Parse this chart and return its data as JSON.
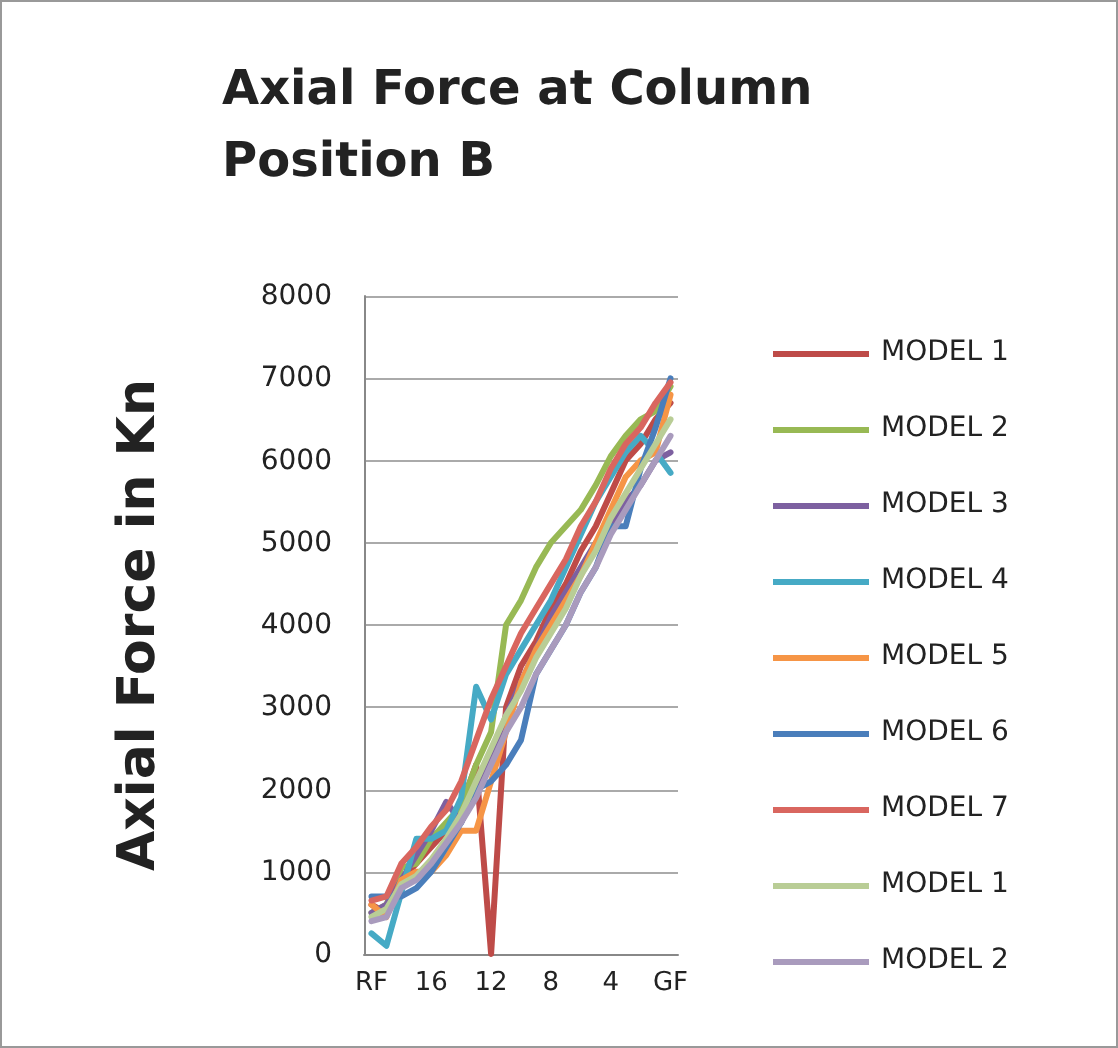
{
  "chart_data": {
    "type": "line",
    "title": "Axial Force at Column Position B",
    "ylabel": "Axial Force in Kn",
    "categories": [
      "RF",
      null,
      null,
      null,
      "16",
      null,
      null,
      null,
      "12",
      null,
      null,
      null,
      "8",
      null,
      null,
      null,
      "4",
      null,
      null,
      null,
      "GF"
    ],
    "series": [
      {
        "name": "MODEL 1",
        "color": "#be4b48",
        "values": [
          600,
          500,
          900,
          1100,
          1300,
          1500,
          1800,
          2300,
          0,
          3000,
          3500,
          3800,
          4200,
          4500,
          4900,
          5200,
          5600,
          6000,
          6200,
          6500,
          6700
        ]
      },
      {
        "name": "MODEL 2",
        "color": "#98b954",
        "values": [
          500,
          600,
          1050,
          1100,
          1400,
          1600,
          1800,
          2300,
          2700,
          4000,
          4300,
          4700,
          5000,
          5200,
          5400,
          5700,
          6050,
          6300,
          6500,
          6600,
          6900
        ]
      },
      {
        "name": "MODEL 3",
        "color": "#7d60a0",
        "values": [
          500,
          600,
          900,
          1200,
          1500,
          1850,
          1600,
          2000,
          2400,
          2900,
          3300,
          3700,
          4100,
          4400,
          4700,
          5000,
          5200,
          5500,
          5700,
          6000,
          6100
        ]
      },
      {
        "name": "MODEL 4",
        "color": "#46aac5",
        "values": [
          250,
          100,
          750,
          1400,
          1400,
          1500,
          1900,
          3250,
          2850,
          3400,
          3700,
          4000,
          4300,
          4700,
          5100,
          5500,
          5800,
          6100,
          6300,
          6100,
          5850
        ]
      },
      {
        "name": "MODEL 5",
        "color": "#f69546",
        "values": [
          600,
          450,
          900,
          1000,
          1000,
          1200,
          1500,
          1500,
          2100,
          2700,
          3300,
          3700,
          4000,
          4300,
          4600,
          5000,
          5400,
          5800,
          6000,
          6100,
          6800
        ]
      },
      {
        "name": "MODEL 6",
        "color": "#4a7ebb",
        "values": [
          700,
          700,
          700,
          800,
          1000,
          1300,
          1600,
          2000,
          2100,
          2300,
          2600,
          3400,
          3700,
          4000,
          4400,
          4700,
          5200,
          5200,
          5900,
          6400,
          7000
        ]
      },
      {
        "name": "MODEL 7",
        "color": "#d9665f",
        "values": [
          650,
          700,
          1100,
          1300,
          1550,
          1750,
          2100,
          2600,
          3100,
          3500,
          3900,
          4200,
          4500,
          4800,
          5200,
          5500,
          5900,
          6200,
          6400,
          6700,
          6950
        ]
      },
      {
        "name": "MODEL 1",
        "color": "#b9cd96",
        "values": [
          450,
          550,
          850,
          950,
          1150,
          1400,
          1700,
          2100,
          2500,
          2900,
          3200,
          3600,
          3900,
          4200,
          4600,
          4900,
          5300,
          5600,
          5900,
          6200,
          6500
        ]
      },
      {
        "name": "MODEL 2",
        "color": "#a99bbd",
        "values": [
          400,
          450,
          800,
          900,
          1100,
          1350,
          1600,
          1900,
          2300,
          2700,
          3000,
          3400,
          3700,
          4000,
          4400,
          4700,
          5100,
          5400,
          5700,
          6000,
          6300
        ]
      }
    ],
    "ylim": [
      0,
      8000
    ],
    "yticks": [
      0,
      1000,
      2000,
      3000,
      4000,
      5000,
      6000,
      7000,
      8000
    ],
    "grid": "y",
    "legend": "right",
    "marker": "none",
    "line_style": "solid"
  }
}
